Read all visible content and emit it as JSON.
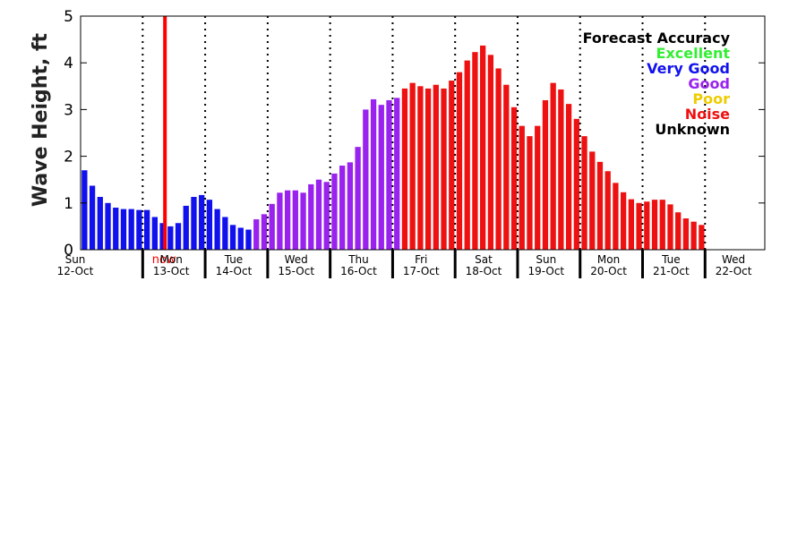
{
  "chart_data": {
    "type": "bar",
    "title": "",
    "ylabel": "Wave Height, ft",
    "xlabel": "",
    "ylim": [
      0,
      5
    ],
    "yticks": [
      0,
      1,
      2,
      3,
      4,
      5
    ],
    "grid": false,
    "legend_position": "top-right",
    "day_labels": [
      {
        "day": "Sun",
        "date": "12-Oct"
      },
      {
        "day": "Mon",
        "date": "13-Oct"
      },
      {
        "day": "Tue",
        "date": "14-Oct"
      },
      {
        "day": "Wed",
        "date": "15-Oct"
      },
      {
        "day": "Thu",
        "date": "16-Oct"
      },
      {
        "day": "Fri",
        "date": "17-Oct"
      },
      {
        "day": "Sat",
        "date": "18-Oct"
      },
      {
        "day": "Sun",
        "date": "19-Oct"
      },
      {
        "day": "Mon",
        "date": "20-Oct"
      },
      {
        "day": "Tue",
        "date": "21-Oct"
      },
      {
        "day": "Wed",
        "date": "22-Oct"
      }
    ],
    "now_marker": {
      "label": "now",
      "color": "#ff0000",
      "x_day": 1.35
    },
    "legend": {
      "title": "Forecast Accuracy",
      "title_color": "#000000",
      "entries": [
        {
          "label": "Excellent",
          "color": "#33ee33"
        },
        {
          "label": "Very Good",
          "color": "#1111ee"
        },
        {
          "label": "Good",
          "color": "#9922ee"
        },
        {
          "label": "Poor",
          "color": "#eecc00"
        },
        {
          "label": "Noise",
          "color": "#ee1111"
        },
        {
          "label": "Unknown",
          "color": "#000000"
        }
      ]
    },
    "series": [
      {
        "categories_per_day": 8,
        "values": [
          1.7,
          1.37,
          1.13,
          1.0,
          0.9,
          0.87,
          0.87,
          0.85,
          0.85,
          0.7,
          0.57,
          0.5,
          0.57,
          0.94,
          1.13,
          1.17,
          1.07,
          0.87,
          0.7,
          0.53,
          0.47,
          0.43,
          0.65,
          0.76,
          0.98,
          1.22,
          1.27,
          1.27,
          1.22,
          1.4,
          1.5,
          1.45,
          1.63,
          1.8,
          1.87,
          2.2,
          3.0,
          3.22,
          3.1,
          3.2,
          3.25,
          3.45,
          3.57,
          3.5,
          3.45,
          3.53,
          3.45,
          3.62,
          3.8,
          4.05,
          4.23,
          4.37,
          4.17,
          3.88,
          3.53,
          3.05,
          2.65,
          2.43,
          2.65,
          3.2,
          3.57,
          3.43,
          3.12,
          2.8,
          2.43,
          2.1,
          1.88,
          1.68,
          1.43,
          1.23,
          1.08,
          1.0,
          1.03,
          1.07,
          1.07,
          0.97,
          0.8,
          0.67,
          0.6,
          0.53
        ],
        "accuracy": [
          "Very Good",
          "Very Good",
          "Very Good",
          "Very Good",
          "Very Good",
          "Very Good",
          "Very Good",
          "Very Good",
          "Very Good",
          "Very Good",
          "Very Good",
          "Very Good",
          "Very Good",
          "Very Good",
          "Very Good",
          "Very Good",
          "Very Good",
          "Very Good",
          "Very Good",
          "Very Good",
          "Very Good",
          "Very Good",
          "Good",
          "Good",
          "Good",
          "Good",
          "Good",
          "Good",
          "Good",
          "Good",
          "Good",
          "Good",
          "Good",
          "Good",
          "Good",
          "Good",
          "Good",
          "Good",
          "Good",
          "Good",
          "Good",
          "Noise",
          "Noise",
          "Noise",
          "Noise",
          "Noise",
          "Noise",
          "Noise",
          "Noise",
          "Noise",
          "Noise",
          "Noise",
          "Noise",
          "Noise",
          "Noise",
          "Noise",
          "Noise",
          "Noise",
          "Noise",
          "Noise",
          "Noise",
          "Noise",
          "Noise",
          "Noise",
          "Noise",
          "Noise",
          "Noise",
          "Noise",
          "Noise",
          "Noise",
          "Noise",
          "Noise",
          "Noise",
          "Noise",
          "Noise",
          "Noise",
          "Noise",
          "Noise",
          "Noise",
          "Noise"
        ]
      }
    ]
  }
}
